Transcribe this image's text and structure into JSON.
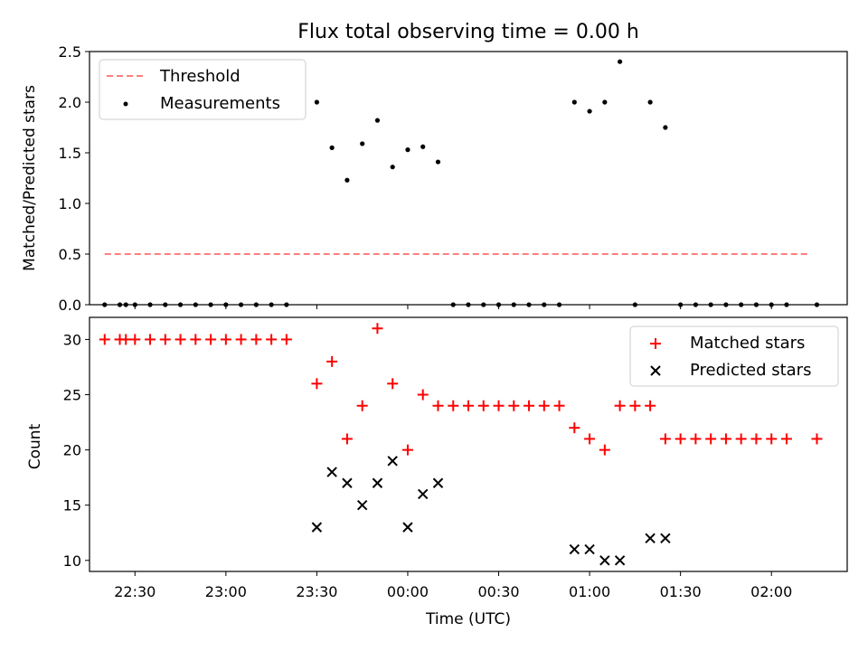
{
  "chart_data": [
    {
      "type": "scatter",
      "title": "Flux total observing time = 0.00 h",
      "ylabel": "Matched/Predicted stars",
      "xlim": [
        "22:15",
        "02:25"
      ],
      "ylim": [
        0,
        2.5
      ],
      "yticks": [
        "0.0",
        "0.5",
        "1.0",
        "1.5",
        "2.0",
        "2.5"
      ],
      "legend_position": "upper-left",
      "series": [
        {
          "name": "Threshold",
          "style": "dashed-line",
          "color": "#ff7f7f",
          "points": [
            [
              "22:20",
              0.5
            ],
            [
              "02:13",
              0.5
            ]
          ]
        },
        {
          "name": "Measurements",
          "style": "dot",
          "color": "#000000",
          "points": [
            [
              "22:20",
              0.0
            ],
            [
              "22:25",
              0.0
            ],
            [
              "22:27",
              0.0
            ],
            [
              "22:30",
              0.0
            ],
            [
              "22:35",
              0.0
            ],
            [
              "22:40",
              0.0
            ],
            [
              "22:45",
              0.0
            ],
            [
              "22:50",
              0.0
            ],
            [
              "22:55",
              0.0
            ],
            [
              "23:00",
              0.0
            ],
            [
              "23:05",
              0.0
            ],
            [
              "23:10",
              0.0
            ],
            [
              "23:15",
              0.0
            ],
            [
              "23:20",
              0.0
            ],
            [
              "23:30",
              2.0
            ],
            [
              "23:35",
              1.55
            ],
            [
              "23:40",
              1.23
            ],
            [
              "23:45",
              1.59
            ],
            [
              "23:50",
              1.82
            ],
            [
              "23:55",
              1.36
            ],
            [
              "00:00",
              1.53
            ],
            [
              "00:05",
              1.56
            ],
            [
              "00:10",
              1.41
            ],
            [
              "00:15",
              0.0
            ],
            [
              "00:20",
              0.0
            ],
            [
              "00:25",
              0.0
            ],
            [
              "00:30",
              0.0
            ],
            [
              "00:35",
              0.0
            ],
            [
              "00:40",
              0.0
            ],
            [
              "00:45",
              0.0
            ],
            [
              "00:50",
              0.0
            ],
            [
              "00:55",
              2.0
            ],
            [
              "01:00",
              1.91
            ],
            [
              "01:05",
              2.0
            ],
            [
              "01:10",
              2.4
            ],
            [
              "01:15",
              0.0
            ],
            [
              "01:20",
              2.0
            ],
            [
              "01:25",
              1.75
            ],
            [
              "01:30",
              0.0
            ],
            [
              "01:35",
              0.0
            ],
            [
              "01:40",
              0.0
            ],
            [
              "01:45",
              0.0
            ],
            [
              "01:50",
              0.0
            ],
            [
              "01:55",
              0.0
            ],
            [
              "02:00",
              0.0
            ],
            [
              "02:05",
              0.0
            ],
            [
              "02:15",
              0.0
            ]
          ]
        }
      ]
    },
    {
      "type": "scatter",
      "xlabel": "Time (UTC)",
      "ylabel": "Count",
      "xlim": [
        "22:15",
        "02:25"
      ],
      "ylim": [
        9,
        32
      ],
      "xticks": [
        "22:30",
        "23:00",
        "23:30",
        "00:00",
        "00:30",
        "01:00",
        "01:30",
        "02:00"
      ],
      "yticks": [
        "10",
        "15",
        "20",
        "25",
        "30"
      ],
      "legend_position": "upper-right",
      "series": [
        {
          "name": "Matched stars",
          "style": "plus",
          "color": "#ff0000",
          "points": [
            [
              "22:20",
              30
            ],
            [
              "22:25",
              30
            ],
            [
              "22:27",
              30
            ],
            [
              "22:30",
              30
            ],
            [
              "22:35",
              30
            ],
            [
              "22:40",
              30
            ],
            [
              "22:45",
              30
            ],
            [
              "22:50",
              30
            ],
            [
              "22:55",
              30
            ],
            [
              "23:00",
              30
            ],
            [
              "23:05",
              30
            ],
            [
              "23:10",
              30
            ],
            [
              "23:15",
              30
            ],
            [
              "23:20",
              30
            ],
            [
              "23:30",
              26
            ],
            [
              "23:35",
              28
            ],
            [
              "23:40",
              21
            ],
            [
              "23:45",
              24
            ],
            [
              "23:50",
              31
            ],
            [
              "23:55",
              26
            ],
            [
              "00:00",
              20
            ],
            [
              "00:05",
              25
            ],
            [
              "00:10",
              24
            ],
            [
              "00:15",
              24
            ],
            [
              "00:20",
              24
            ],
            [
              "00:25",
              24
            ],
            [
              "00:30",
              24
            ],
            [
              "00:35",
              24
            ],
            [
              "00:40",
              24
            ],
            [
              "00:45",
              24
            ],
            [
              "00:50",
              24
            ],
            [
              "00:55",
              22
            ],
            [
              "01:00",
              21
            ],
            [
              "01:05",
              20
            ],
            [
              "01:10",
              24
            ],
            [
              "01:15",
              24
            ],
            [
              "01:20",
              24
            ],
            [
              "01:25",
              21
            ],
            [
              "01:30",
              21
            ],
            [
              "01:35",
              21
            ],
            [
              "01:40",
              21
            ],
            [
              "01:45",
              21
            ],
            [
              "01:50",
              21
            ],
            [
              "01:55",
              21
            ],
            [
              "02:00",
              21
            ],
            [
              "02:05",
              21
            ],
            [
              "02:15",
              21
            ]
          ]
        },
        {
          "name": "Predicted stars",
          "style": "x",
          "color": "#000000",
          "points": [
            [
              "23:30",
              13
            ],
            [
              "23:35",
              18
            ],
            [
              "23:40",
              17
            ],
            [
              "23:45",
              15
            ],
            [
              "23:50",
              17
            ],
            [
              "23:55",
              19
            ],
            [
              "00:00",
              13
            ],
            [
              "00:05",
              16
            ],
            [
              "00:10",
              17
            ],
            [
              "00:55",
              11
            ],
            [
              "01:00",
              11
            ],
            [
              "01:05",
              10
            ],
            [
              "01:10",
              10
            ],
            [
              "01:20",
              12
            ],
            [
              "01:25",
              12
            ]
          ]
        }
      ]
    }
  ]
}
